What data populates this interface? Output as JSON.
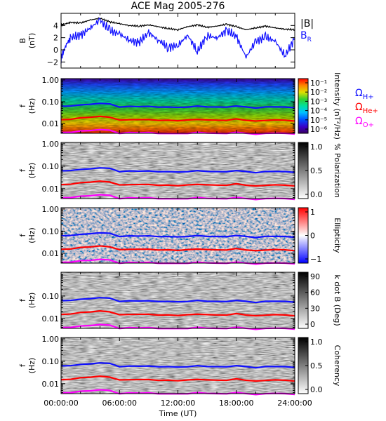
{
  "chart_data": {
    "title": "ACE Mag 2005-276",
    "xlabel": "Time (UT)",
    "x_ticks": [
      "00:00:00",
      "06:00:00",
      "12:00:00",
      "18:00:00",
      "24:00:00"
    ],
    "x_range_hours": [
      0,
      24
    ],
    "panels": [
      {
        "type": "line",
        "ylabel": "B (nT)",
        "ylim": [
          -3,
          6
        ],
        "y_ticks": [
          -2,
          0,
          2,
          4
        ],
        "legend": [
          {
            "name": "|B|",
            "color": "#000000"
          },
          {
            "name": "B",
            "sub": "R",
            "color": "#1010ff"
          }
        ],
        "series": [
          {
            "name": "|B|",
            "color": "#000000",
            "x": [
              0,
              0.5,
              1,
              2,
              3,
              4,
              5,
              6,
              7,
              8,
              9,
              10,
              11,
              12,
              13,
              14,
              15,
              16,
              17,
              18,
              19,
              20,
              21,
              22,
              23,
              24
            ],
            "y": [
              4.1,
              4.3,
              4.5,
              4.4,
              4.9,
              5.2,
              4.6,
              4.3,
              4.0,
              3.9,
              4.1,
              3.8,
              3.5,
              3.3,
              3.8,
              4.1,
              3.7,
              3.9,
              4.2,
              3.8,
              3.3,
              3.6,
              3.9,
              3.6,
              3.4,
              3.3
            ]
          },
          {
            "name": "BR",
            "color": "#1010ff",
            "x": [
              0,
              0.5,
              1,
              2,
              3,
              4,
              5,
              6,
              7,
              8,
              9,
              10,
              11,
              12,
              13,
              14,
              15,
              16,
              17,
              18,
              19,
              20,
              21,
              22,
              23,
              24
            ],
            "y": [
              -1.5,
              0.8,
              2.0,
              2.4,
              3.6,
              4.9,
              3.2,
              2.6,
              1.6,
              1.2,
              2.8,
              1.6,
              0.4,
              0.7,
              2.4,
              -0.3,
              2.4,
              1.9,
              3.2,
              2.2,
              -1.2,
              1.4,
              2.1,
              1.4,
              -1.0,
              1.9
            ]
          }
        ]
      },
      {
        "type": "heatmap",
        "ylabel": "f (Hz)",
        "y_scale": "log",
        "ylim": [
          0.004,
          1.2
        ],
        "y_ticks": [
          "1.00",
          "0.10",
          "0.01"
        ],
        "colorbar": {
          "label": "Intensity (nT²/Hz)",
          "ticks": [
            "10⁻¹",
            "10⁻²",
            "10⁻³",
            "10⁻⁴",
            "10⁻⁵",
            "10⁻⁶"
          ],
          "scale": "rainbow"
        },
        "legend": [
          {
            "name": "Ω",
            "sub": "H+",
            "color": "#1010ff"
          },
          {
            "name": "Ω",
            "sub": "He+",
            "color": "#ff0000"
          },
          {
            "name": "Ω",
            "sub": "O+",
            "color": "#ff00ff"
          }
        ]
      },
      {
        "type": "heatmap",
        "ylabel": "f (Hz)",
        "y_scale": "log",
        "y_ticks": [
          "1.00",
          "0.10",
          "0.01"
        ],
        "colorbar": {
          "label": "% Polarization",
          "ticks": [
            "1.0",
            "0.5",
            "0.0"
          ],
          "scale": "gray"
        }
      },
      {
        "type": "heatmap",
        "ylabel": "f (Hz)",
        "y_scale": "log",
        "y_ticks": [
          "1.00",
          "0.10",
          "0.01"
        ],
        "colorbar": {
          "label": "Ellipticity",
          "ticks": [
            "1",
            "0",
            "−1"
          ],
          "scale": "bwr"
        }
      },
      {
        "type": "heatmap",
        "ylabel": "f (Hz)",
        "y_scale": "log",
        "y_ticks": [
          "0.10",
          "0.01"
        ],
        "colorbar": {
          "label": "k dot B (Deg)",
          "ticks": [
            "90",
            "60",
            "30",
            "0"
          ],
          "scale": "gray"
        }
      },
      {
        "type": "heatmap",
        "ylabel": "f (Hz)",
        "y_scale": "log",
        "y_ticks": [
          "1.00",
          "0.10",
          "0.01"
        ],
        "colorbar": {
          "label": "Coherency",
          "ticks": [
            "1.0",
            "0.5",
            "0.0"
          ],
          "scale": "gray"
        }
      }
    ],
    "gyrofrequency_lines_hz": {
      "x": [
        0,
        1,
        2,
        3,
        4,
        5,
        6,
        7,
        8,
        9,
        10,
        11,
        12,
        13,
        14,
        15,
        16,
        17,
        18,
        19,
        20,
        21,
        22,
        23,
        24
      ],
      "H+": [
        0.06,
        0.066,
        0.07,
        0.078,
        0.084,
        0.08,
        0.058,
        0.06,
        0.062,
        0.06,
        0.058,
        0.057,
        0.055,
        0.058,
        0.062,
        0.06,
        0.056,
        0.058,
        0.063,
        0.058,
        0.052,
        0.057,
        0.06,
        0.056,
        0.054
      ],
      "He+": [
        0.015,
        0.016,
        0.018,
        0.02,
        0.021,
        0.02,
        0.0145,
        0.015,
        0.0155,
        0.015,
        0.0145,
        0.014,
        0.0138,
        0.0145,
        0.0155,
        0.015,
        0.014,
        0.0145,
        0.016,
        0.0145,
        0.013,
        0.014,
        0.015,
        0.014,
        0.0135
      ],
      "O+": [
        0.0038,
        0.0041,
        0.0045,
        0.0049,
        0.0053,
        0.005,
        0.0036,
        0.0038,
        0.0039,
        0.0038,
        0.0036,
        0.0035,
        0.0035,
        0.0036,
        0.0039,
        0.0038,
        0.0035,
        0.0036,
        0.004,
        0.0036,
        0.0033,
        0.0035,
        0.0038,
        0.0035,
        0.0034
      ]
    }
  }
}
